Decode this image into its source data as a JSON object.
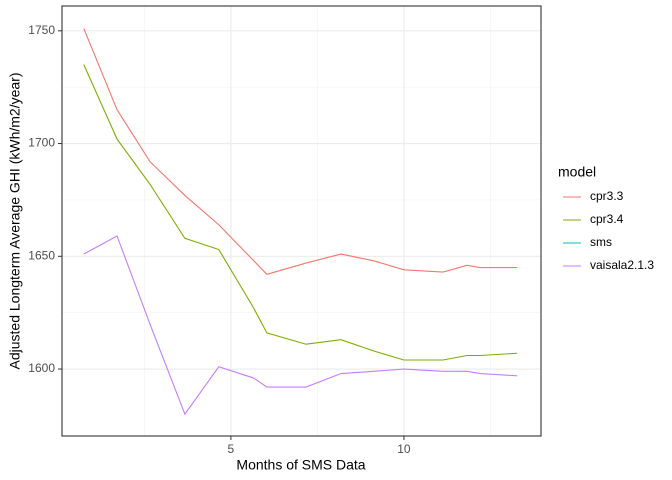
{
  "chart_data": {
    "type": "line",
    "x_label": "Months of SMS Data",
    "y_label": "Adjusted Longterm Average GHI (kWh/m2/year)",
    "legend_title": "model",
    "legend_position": "right",
    "grid": true,
    "xlim": [
      0.12,
      13.96
    ],
    "xticks": [
      5,
      10
    ],
    "xminor": [
      2.5,
      7.5,
      12.5
    ],
    "ylim": [
      1570.3,
      1761
    ],
    "yticks": [
      1600,
      1650,
      1700,
      1750
    ],
    "yminor": [
      1625,
      1675,
      1725
    ],
    "x": [
      0.75,
      1.71,
      2.66,
      3.67,
      4.65,
      5.66,
      6.04,
      7.17,
      8.18,
      9.13,
      10.0,
      11.13,
      11.82,
      12.2,
      13.27
    ],
    "series": [
      {
        "name": "cpr3.3",
        "color": "#F8766D",
        "values": [
          1751,
          1715,
          1692,
          1677,
          1664,
          1648,
          1642,
          1647,
          1651,
          1648,
          1644,
          1643,
          1646,
          1645,
          1645
        ]
      },
      {
        "name": "cpr3.4",
        "color": "#7CAE00",
        "values": [
          1735,
          1702,
          1682,
          1658,
          1653,
          1627,
          1616,
          1611,
          1613,
          1608,
          1604,
          1604,
          1606,
          1606,
          1607
        ]
      },
      {
        "name": "sms",
        "color": "#00BFC4",
        "values": [
          null,
          null,
          null,
          null,
          null,
          null,
          null,
          null,
          null,
          null,
          null,
          null,
          null,
          null,
          null
        ]
      },
      {
        "name": "vaisala2.1.3",
        "color": "#C77CFF",
        "values": [
          1651,
          1659,
          1620,
          1580,
          1601,
          1596,
          1592,
          1592,
          1598,
          1599,
          1600,
          1599,
          1599,
          1598,
          1597
        ]
      }
    ]
  }
}
